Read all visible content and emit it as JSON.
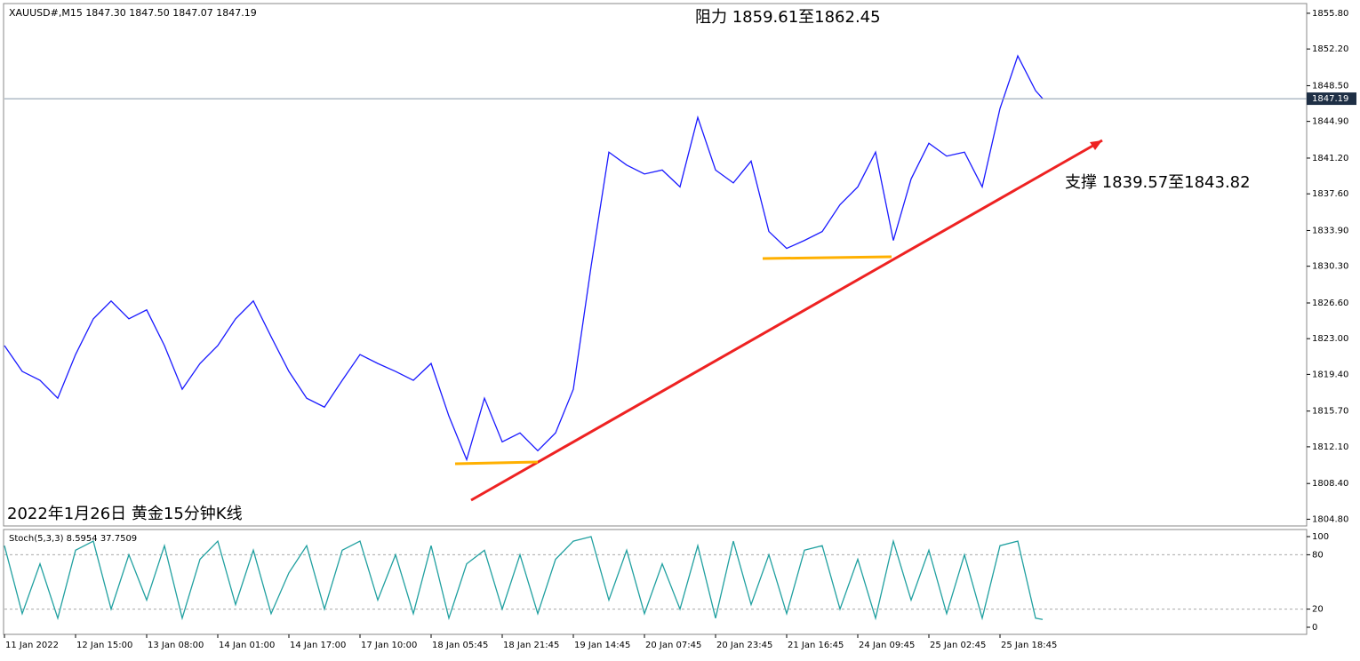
{
  "chart_data": [
    {
      "type": "line",
      "title": "XAUUSD#,M15  1847.30 1847.50 1847.07 1847.19",
      "annotations": [
        "阻力 1859.61至1862.45",
        "支撑 1839.57至1843.82",
        "2022年1月26日 黄金15分钟K线"
      ],
      "x": [
        0,
        20,
        40,
        60,
        80,
        100,
        120,
        140,
        160,
        180,
        200,
        220,
        240,
        260,
        280,
        300,
        320,
        340,
        360,
        380,
        400,
        420,
        440,
        460,
        480,
        500,
        520,
        540,
        560,
        580,
        600,
        620,
        640,
        660,
        680,
        700,
        720,
        740,
        760,
        780,
        800,
        820,
        840,
        860,
        880,
        900,
        920,
        940,
        960,
        980,
        1000,
        1020,
        1040,
        1060,
        1080,
        1100,
        1120,
        1140,
        1160,
        1168
      ],
      "values": [
        1822.3,
        1819.7,
        1818.8,
        1817,
        1821.4,
        1825,
        1826.8,
        1825,
        1825.9,
        1822.3,
        1817.9,
        1820.5,
        1822.3,
        1825,
        1826.8,
        1823.2,
        1819.7,
        1817,
        1816.1,
        1818.8,
        1821.4,
        1820.5,
        1819.7,
        1818.8,
        1820.5,
        1815.2,
        1810.8,
        1817,
        1812.6,
        1813.5,
        1811.7,
        1813.5,
        1817.9,
        1830.3,
        1841.8,
        1840.5,
        1839.6,
        1840,
        1838.3,
        1845.3,
        1840,
        1838.7,
        1840.9,
        1833.8,
        1832.1,
        1832.9,
        1833.8,
        1836.5,
        1838.3,
        1841.8,
        1832.9,
        1839.1,
        1842.7,
        1841.4,
        1841.8,
        1838.3,
        1846.2,
        1851.5,
        1848,
        1847.19
      ],
      "color": "#1a1aff",
      "last_price": 1847.19,
      "xlim": [
        0,
        1465
      ],
      "ylim": [
        1804.3,
        1856.6
      ],
      "yticks": [
        {
          "value": 1855.8,
          "label": "1855.80"
        },
        {
          "value": 1852.2,
          "label": "1852.20"
        },
        {
          "value": 1848.5,
          "label": "1848.50"
        },
        {
          "value": 1844.9,
          "label": "1844.90"
        },
        {
          "value": 1841.2,
          "label": "1841.20"
        },
        {
          "value": 1837.6,
          "label": "1837.60"
        },
        {
          "value": 1833.9,
          "label": "1833.90"
        },
        {
          "value": 1830.3,
          "label": "1830.30"
        },
        {
          "value": 1826.6,
          "label": "1826.60"
        },
        {
          "value": 1823,
          "label": "1823.00"
        },
        {
          "value": 1819.4,
          "label": "1819.40"
        },
        {
          "value": 1815.7,
          "label": "1815.70"
        },
        {
          "value": 1812.1,
          "label": "1812.10"
        },
        {
          "value": 1808.4,
          "label": "1808.40"
        },
        {
          "value": 1804.8,
          "label": "1804.80"
        }
      ],
      "xticks": [
        {
          "value": 0,
          "label": "11 Jan 2022"
        },
        {
          "value": 80,
          "label": "12 Jan 15:00"
        },
        {
          "value": 160,
          "label": "13 Jan 08:00"
        },
        {
          "value": 240,
          "label": "14 Jan 01:00"
        },
        {
          "value": 320,
          "label": "14 Jan 17:00"
        },
        {
          "value": 400,
          "label": "17 Jan 10:00"
        },
        {
          "value": 480,
          "label": "18 Jan 05:45"
        },
        {
          "value": 560,
          "label": "18 Jan 21:45"
        },
        {
          "value": 640,
          "label": "19 Jan 14:45"
        },
        {
          "value": 720,
          "label": "20 Jan 07:45"
        },
        {
          "value": 800,
          "label": "20 Jan 23:45"
        },
        {
          "value": 880,
          "label": "21 Jan 16:45"
        },
        {
          "value": 960,
          "label": "24 Jan 09:45"
        },
        {
          "value": 1040,
          "label": "25 Jan 02:45"
        },
        {
          "value": 1120,
          "label": "25 Jan 18:45"
        }
      ]
    },
    {
      "type": "line",
      "title": "Stoch(5,3,3) 8.5954 37.7509",
      "x": [
        0,
        20,
        40,
        60,
        80,
        100,
        120,
        140,
        160,
        180,
        200,
        220,
        240,
        260,
        280,
        300,
        320,
        340,
        360,
        380,
        400,
        420,
        440,
        460,
        480,
        500,
        520,
        540,
        560,
        580,
        600,
        620,
        640,
        660,
        680,
        700,
        720,
        740,
        760,
        780,
        800,
        820,
        840,
        860,
        880,
        900,
        920,
        940,
        960,
        980,
        1000,
        1020,
        1040,
        1060,
        1080,
        1100,
        1120,
        1140,
        1160,
        1168
      ],
      "values": [
        90,
        15,
        70,
        10,
        85,
        95,
        20,
        80,
        30,
        90,
        10,
        75,
        95,
        25,
        85,
        15,
        60,
        90,
        20,
        85,
        95,
        30,
        80,
        15,
        90,
        10,
        70,
        85,
        20,
        80,
        15,
        75,
        95,
        100,
        30,
        85,
        15,
        70,
        20,
        90,
        10,
        95,
        25,
        80,
        15,
        85,
        90,
        20,
        75,
        10,
        95,
        30,
        85,
        15,
        80,
        10,
        90,
        95,
        10,
        8.6
      ],
      "color": "#20a0a0",
      "ylim": [
        0,
        100
      ],
      "yticks": [
        0,
        20,
        80,
        100
      ],
      "levels": [
        20,
        80
      ]
    }
  ]
}
